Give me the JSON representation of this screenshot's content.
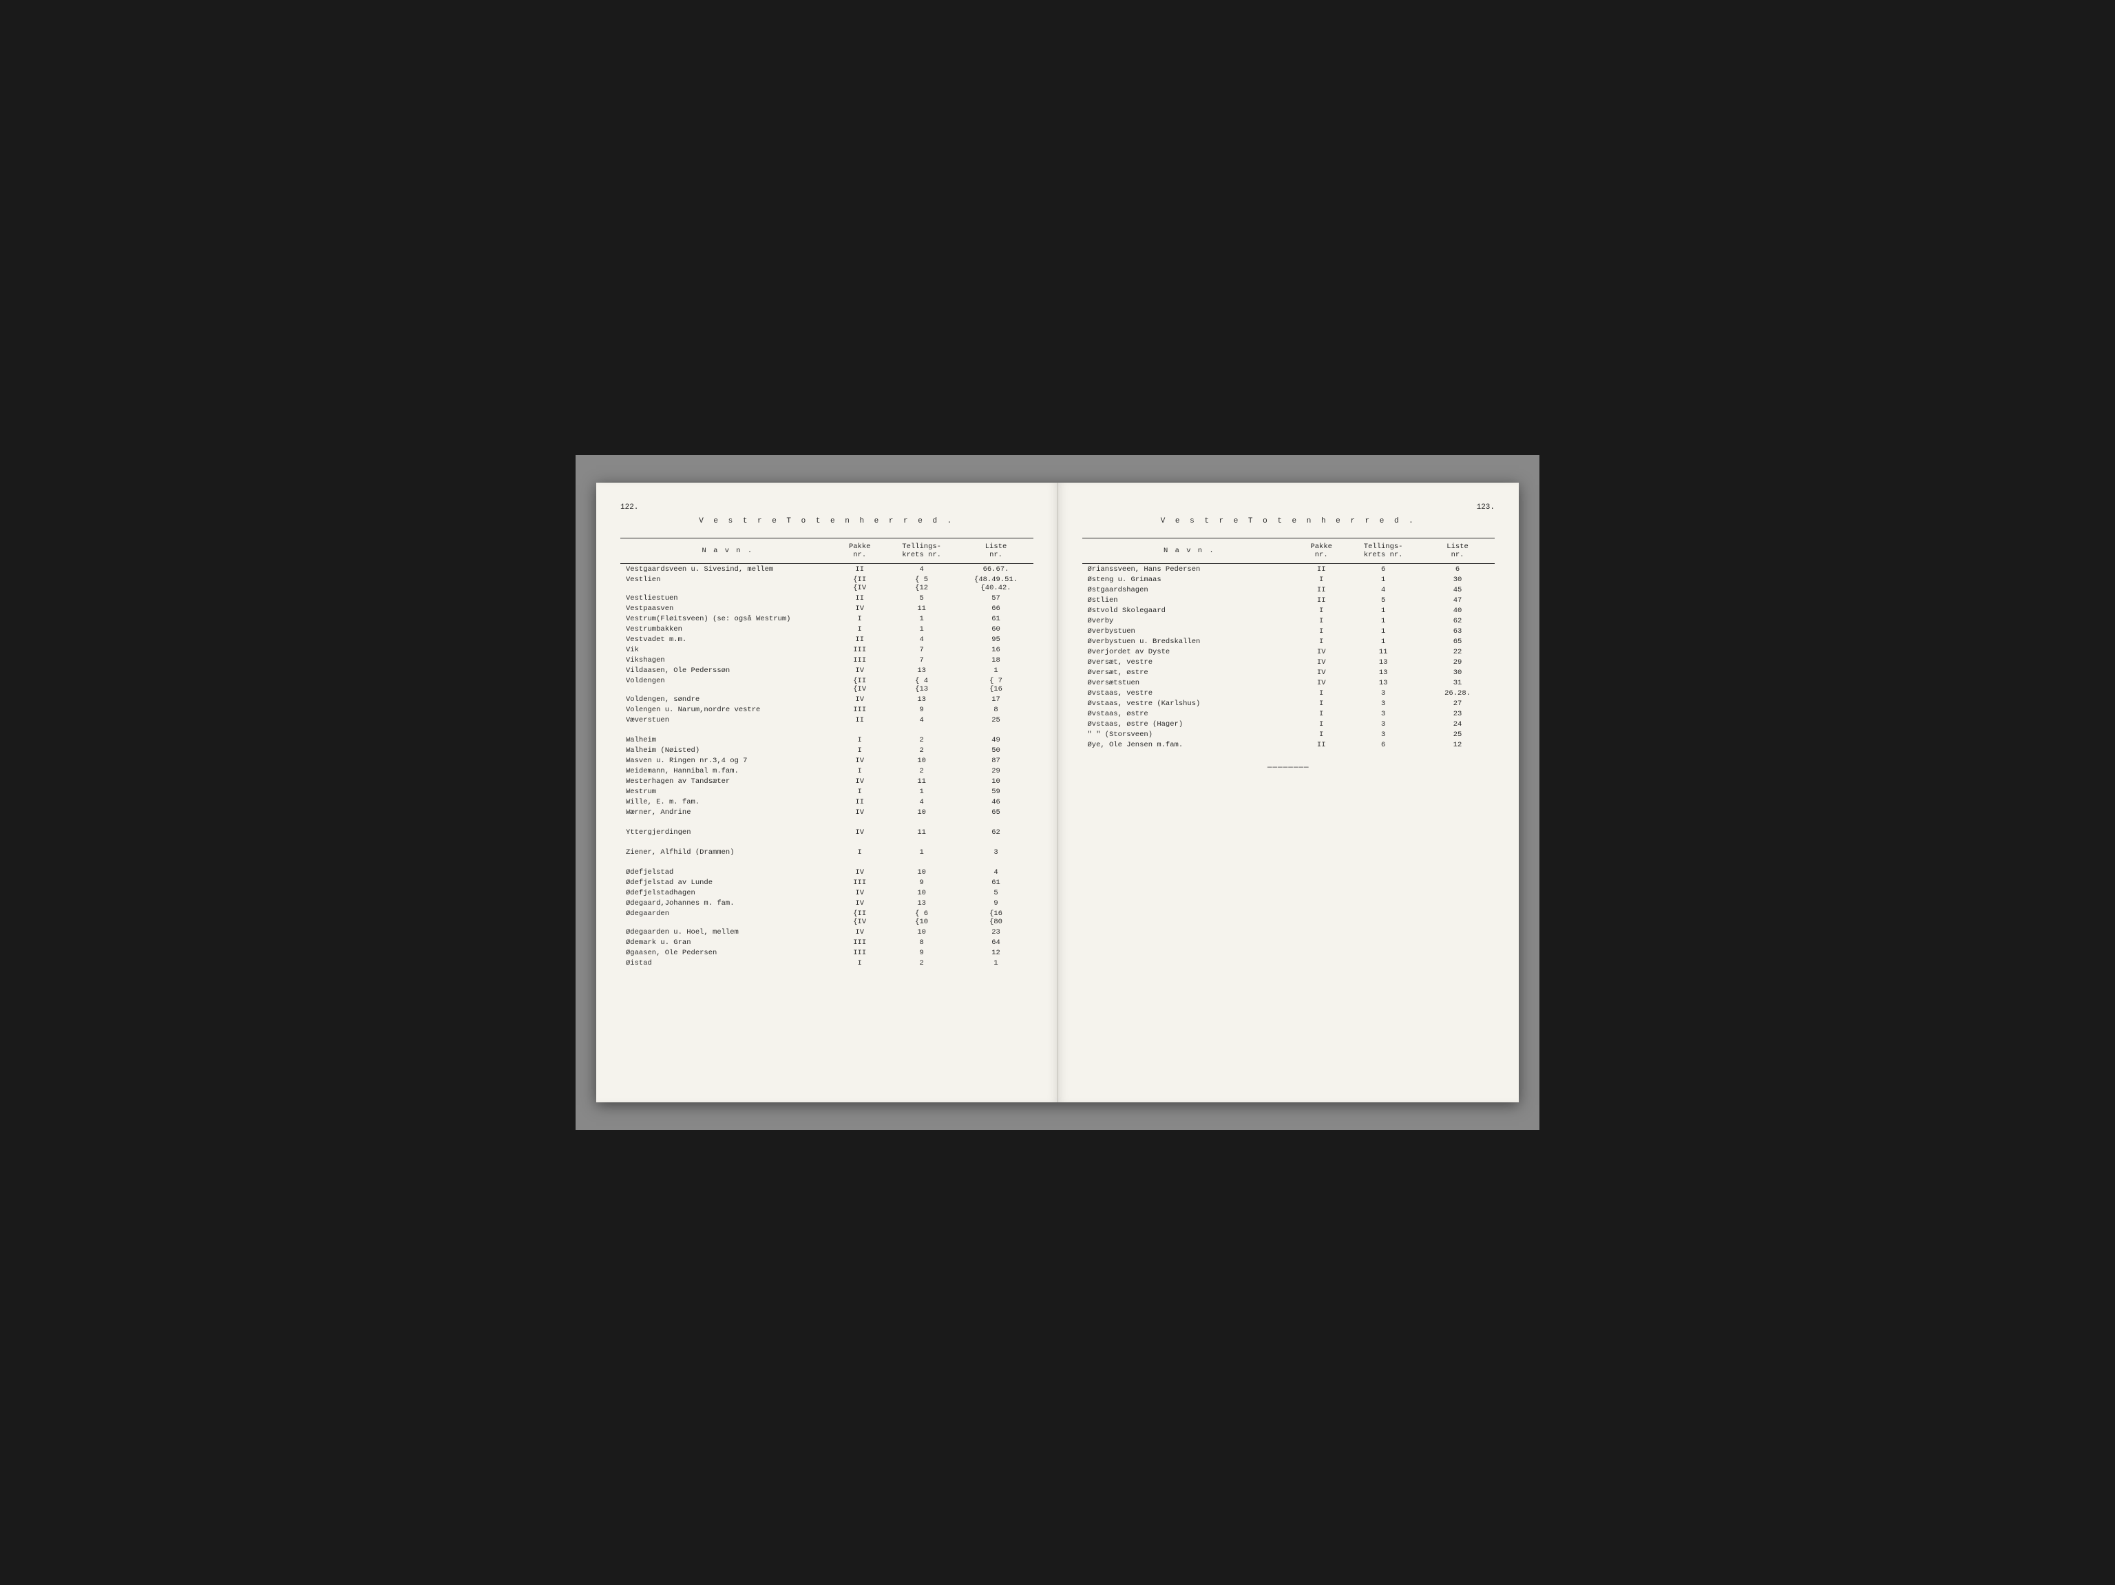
{
  "left": {
    "pageNumber": "122.",
    "title": "V e s t r e   T o t e n   h e r r e d   .",
    "headers": {
      "name": "N a v n .",
      "pakke": "Pakke\nnr.",
      "krets": "Tellings-\nkrets nr.",
      "liste": "Liste\nnr."
    },
    "rows": [
      {
        "n": "Vestgaardsveen u. Sivesind, mellem",
        "p": "II",
        "k": "4",
        "l": "66.67."
      },
      {
        "n": "Vestlien",
        "p": "{II\n{IV",
        "k": "{ 5\n{12",
        "l": "{48.49.51.\n{40.42."
      },
      {
        "n": "Vestliestuen",
        "p": "II",
        "k": "5",
        "l": "57"
      },
      {
        "n": "Vestpaasven",
        "p": "IV",
        "k": "11",
        "l": "66"
      },
      {
        "n": "Vestrum(Fløitsveen) (se: også Westrum)",
        "p": "I",
        "k": "1",
        "l": "61"
      },
      {
        "n": "Vestrumbakken",
        "p": "I",
        "k": "1",
        "l": "60"
      },
      {
        "n": "Vestvadet m.m.",
        "p": "II",
        "k": "4",
        "l": "95"
      },
      {
        "n": "Vik",
        "p": "III",
        "k": "7",
        "l": "16"
      },
      {
        "n": "Vikshagen",
        "p": "III",
        "k": "7",
        "l": "18"
      },
      {
        "n": "Vildaasen, Ole Pederssøn",
        "p": "IV",
        "k": "13",
        "l": "1"
      },
      {
        "n": "Voldengen",
        "p": "{II\n{IV",
        "k": "{ 4\n{13",
        "l": "{ 7\n{16"
      },
      {
        "n": "Voldengen, søndre",
        "p": "IV",
        "k": "13",
        "l": "17"
      },
      {
        "n": "Volengen u. Narum,nordre vestre",
        "p": "III",
        "k": "9",
        "l": "8"
      },
      {
        "n": "Væverstuen",
        "p": "II",
        "k": "4",
        "l": "25"
      },
      {
        "gap": true
      },
      {
        "n": "Walheim",
        "p": "I",
        "k": "2",
        "l": "49"
      },
      {
        "n": "Walheim (Nøisted)",
        "p": "I",
        "k": "2",
        "l": "50"
      },
      {
        "n": "Wasven u. Ringen nr.3,4 og 7",
        "p": "IV",
        "k": "10",
        "l": "87"
      },
      {
        "n": "Weidemann, Hannibal m.fam.",
        "p": "I",
        "k": "2",
        "l": "29"
      },
      {
        "n": "Westerhagen av Tandsæter",
        "p": "IV",
        "k": "11",
        "l": "10"
      },
      {
        "n": "Westrum",
        "p": "I",
        "k": "1",
        "l": "59"
      },
      {
        "n": "Wille, E. m. fam.",
        "p": "II",
        "k": "4",
        "l": "46"
      },
      {
        "n": "Wærner, Andrine",
        "p": "IV",
        "k": "10",
        "l": "65"
      },
      {
        "gap": true
      },
      {
        "n": "Yttergjerdingen",
        "p": "IV",
        "k": "11",
        "l": "62"
      },
      {
        "gap": true
      },
      {
        "n": "Ziener, Alfhild (Drammen)",
        "p": "I",
        "k": "1",
        "l": "3"
      },
      {
        "gap": true
      },
      {
        "n": "Ødefjelstad",
        "p": "IV",
        "k": "10",
        "l": "4"
      },
      {
        "n": "Ødefjelstad av Lunde",
        "p": "III",
        "k": "9",
        "l": "61"
      },
      {
        "n": "Ødefjelstadhagen",
        "p": "IV",
        "k": "10",
        "l": "5"
      },
      {
        "n": "Ødegaard,Johannes m. fam.",
        "p": "IV",
        "k": "13",
        "l": "9"
      },
      {
        "n": "Ødegaarden",
        "p": "{II\n{IV",
        "k": "{ 6\n{10",
        "l": "{16\n{80"
      },
      {
        "n": "Ødegaarden u. Hoel, mellem",
        "p": "IV",
        "k": "10",
        "l": "23"
      },
      {
        "n": "Ødemark u. Gran",
        "p": "III",
        "k": "8",
        "l": "64"
      },
      {
        "n": "Øgaasen, Ole Pedersen",
        "p": "III",
        "k": "9",
        "l": "12"
      },
      {
        "n": "Øistad",
        "p": "I",
        "k": "2",
        "l": "1"
      }
    ]
  },
  "right": {
    "pageNumber": "123.",
    "title": "V e s t r e   T o t e n   h e r r e d .",
    "headers": {
      "name": "N a v n .",
      "pakke": "Pakke\nnr.",
      "krets": "Tellings-\nkrets nr.",
      "liste": "Liste\nnr."
    },
    "rows": [
      {
        "n": "Ørianssveen, Hans Pedersen",
        "p": "II",
        "k": "6",
        "l": "6"
      },
      {
        "n": "Østeng u. Grimaas",
        "p": "I",
        "k": "1",
        "l": "30"
      },
      {
        "n": "Østgaardshagen",
        "p": "II",
        "k": "4",
        "l": "45"
      },
      {
        "n": "Østlien",
        "p": "II",
        "k": "5",
        "l": "47"
      },
      {
        "n": "Østvold Skolegaard",
        "p": "I",
        "k": "1",
        "l": "40"
      },
      {
        "n": "Øverby",
        "p": "I",
        "k": "1",
        "l": "62"
      },
      {
        "n": "Øverbystuen",
        "p": "I",
        "k": "1",
        "l": "63"
      },
      {
        "n": "Øverbystuen u. Bredskallen",
        "p": "I",
        "k": "1",
        "l": "65"
      },
      {
        "n": "Øverjordet av Dyste",
        "p": "IV",
        "k": "11",
        "l": "22"
      },
      {
        "n": "Øversæt, vestre",
        "p": "IV",
        "k": "13",
        "l": "29"
      },
      {
        "n": "Øversæt, østre",
        "p": "IV",
        "k": "13",
        "l": "30"
      },
      {
        "n": "Øversætstuen",
        "p": "IV",
        "k": "13",
        "l": "31"
      },
      {
        "n": "Øvstaas, vestre",
        "p": "I",
        "k": "3",
        "l": "26.28."
      },
      {
        "n": "Øvstaas, vestre (Karlshus)",
        "p": "I",
        "k": "3",
        "l": "27"
      },
      {
        "n": "Øvstaas, østre",
        "p": "I",
        "k": "3",
        "l": "23"
      },
      {
        "n": "Øvstaas, østre (Hager)",
        "p": "I",
        "k": "3",
        "l": "24"
      },
      {
        "n": "   \"       \"   (Storsveen)",
        "p": "I",
        "k": "3",
        "l": "25"
      },
      {
        "n": "Øye, Ole Jensen m.fam.",
        "p": "II",
        "k": "6",
        "l": "12"
      }
    ],
    "endMark": "————————"
  }
}
